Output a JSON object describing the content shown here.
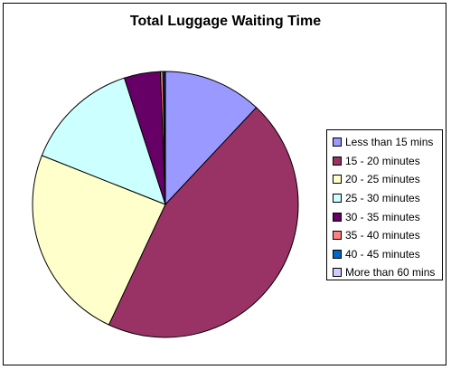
{
  "chart_data": {
    "type": "pie",
    "title": "Total Luggage Waiting Time",
    "legend_position": "right",
    "series": [
      {
        "label": "Less than 15 mins",
        "value": 12.0,
        "color": "#9999FF"
      },
      {
        "label": "15 - 20 minutes",
        "value": 45.0,
        "color": "#993366"
      },
      {
        "label": "20 - 25 minutes",
        "value": 24.0,
        "color": "#FFFFCC"
      },
      {
        "label": "25 - 30 minutes",
        "value": 14.0,
        "color": "#CCFFFF"
      },
      {
        "label": "30 - 35 minutes",
        "value": 4.4,
        "color": "#660066"
      },
      {
        "label": "35 - 40 minutes",
        "value": 0.3,
        "color": "#FF8080"
      },
      {
        "label": "40 - 45 minutes",
        "value": 0.2,
        "color": "#0066CC"
      },
      {
        "label": "More than 60 mins",
        "value": 0.1,
        "color": "#CCCCFF"
      }
    ]
  }
}
